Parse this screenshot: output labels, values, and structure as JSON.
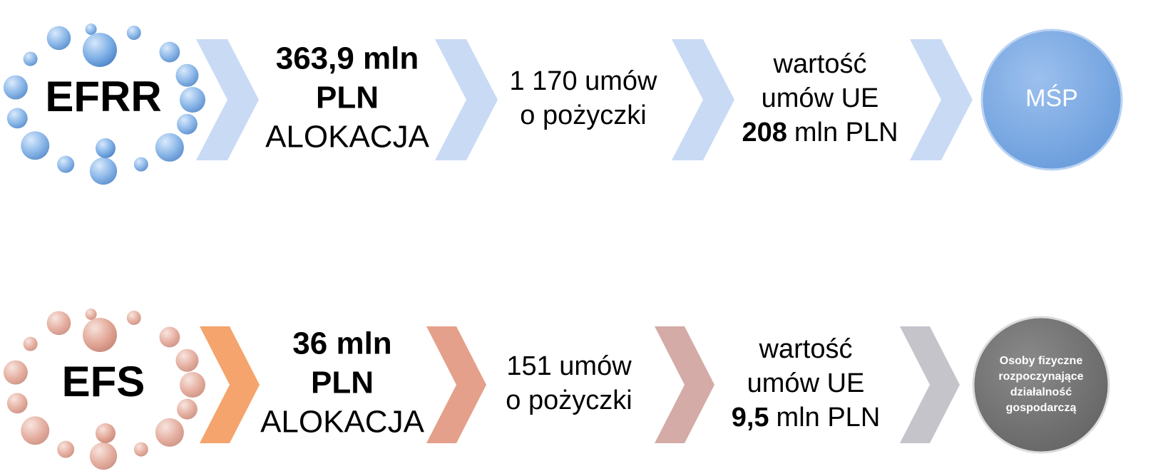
{
  "rows": [
    {
      "label": "EFRR",
      "allocation": {
        "amount": [
          "363,9 mln",
          "PLN"
        ],
        "caption": "ALOKACJA"
      },
      "contracts": [
        "1 170 umów",
        "o pożyczki"
      ],
      "value": {
        "lines": [
          "wartość",
          "umów UE"
        ],
        "amount": "208",
        "unit": "mln PLN"
      },
      "target": [
        "MŚP"
      ]
    },
    {
      "label": "EFS",
      "allocation": {
        "amount": [
          "36 mln",
          "PLN"
        ],
        "caption": "ALOKACJA"
      },
      "contracts": [
        "151 umów",
        "o pożyczki"
      ],
      "value": {
        "lines": [
          "wartość",
          "umów UE"
        ],
        "amount": "9,5",
        "unit": "mln PLN"
      },
      "target": [
        "Osoby fizyczne",
        "rozpoczynające",
        "działalność",
        "gospodarczą"
      ]
    }
  ]
}
